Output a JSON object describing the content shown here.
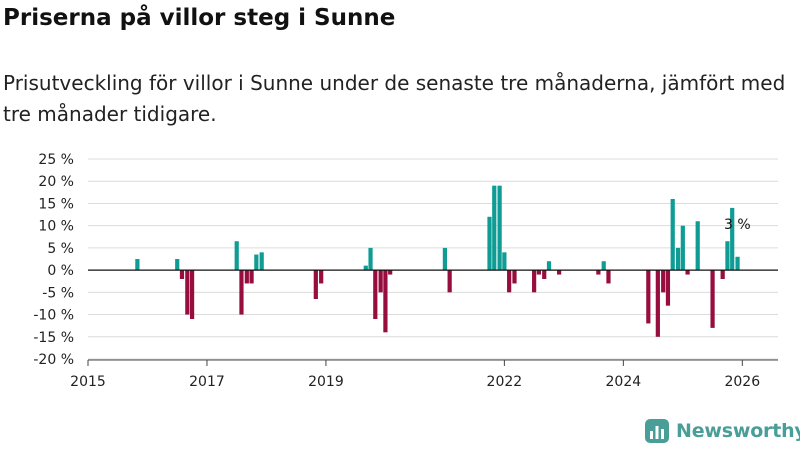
{
  "header": {
    "title": "Priserna på villor steg i Sunne",
    "subtitle": "Prisutveckling för villor i Sunne under de senaste tre månaderna, jämfört med tre månader tidigare."
  },
  "brand": {
    "name": "Newsworthy",
    "logo_icon": "bar-chart-icon",
    "color": "#4a9e98"
  },
  "chart_data": {
    "type": "bar",
    "title": "Priserna på villor steg i Sunne",
    "xlabel": "",
    "ylabel": "",
    "ylim": [
      -20,
      25
    ],
    "y_ticks": [
      -20,
      -15,
      -10,
      -5,
      0,
      5,
      10,
      15,
      20,
      25
    ],
    "y_tick_labels": [
      "-20 %",
      "-15 %",
      "-10 %",
      "-5 %",
      "0 %",
      "5 %",
      "10 %",
      "15 %",
      "20 %",
      "25 %"
    ],
    "xlim": [
      2015.0,
      2026.6
    ],
    "x_ticks": [
      2015,
      2017,
      2019,
      2022,
      2024,
      2026
    ],
    "x_tick_labels": [
      "2015",
      "2017",
      "2019",
      "2022",
      "2024",
      "2026"
    ],
    "grid": true,
    "positive_color": "#0e9c94",
    "negative_color": "#960d3e",
    "annotation": {
      "x": 2025.95,
      "value": 3,
      "text": "3 %"
    },
    "x": [
      2015.83,
      2016.5,
      2016.58,
      2016.67,
      2016.75,
      2017.5,
      2017.58,
      2017.67,
      2017.75,
      2017.83,
      2017.92,
      2018.83,
      2018.92,
      2019.67,
      2019.75,
      2019.83,
      2019.92,
      2020.0,
      2020.08,
      2021.0,
      2021.08,
      2021.75,
      2021.83,
      2021.92,
      2022.0,
      2022.08,
      2022.17,
      2022.5,
      2022.58,
      2022.67,
      2022.75,
      2022.92,
      2023.58,
      2023.67,
      2023.75,
      2024.42,
      2024.58,
      2024.67,
      2024.75,
      2024.83,
      2024.92,
      2025.0,
      2025.08,
      2025.25,
      2025.5,
      2025.67,
      2025.75,
      2025.83,
      2025.92,
      2026.0
    ],
    "values": [
      2.5,
      2.5,
      -2,
      -10,
      -11,
      6.5,
      -10,
      -3,
      -3,
      3.5,
      4,
      -6.5,
      -3,
      1,
      5,
      -11,
      -5,
      -14,
      -1,
      5,
      -5,
      12,
      19,
      19,
      4,
      -5,
      -3,
      -5,
      -1,
      -2,
      2,
      -1,
      -1,
      2,
      -3,
      -12,
      -15,
      -5,
      -8,
      16,
      5,
      10,
      -1,
      11,
      -13,
      -2,
      6.5,
      14,
      3,
      0
    ]
  }
}
